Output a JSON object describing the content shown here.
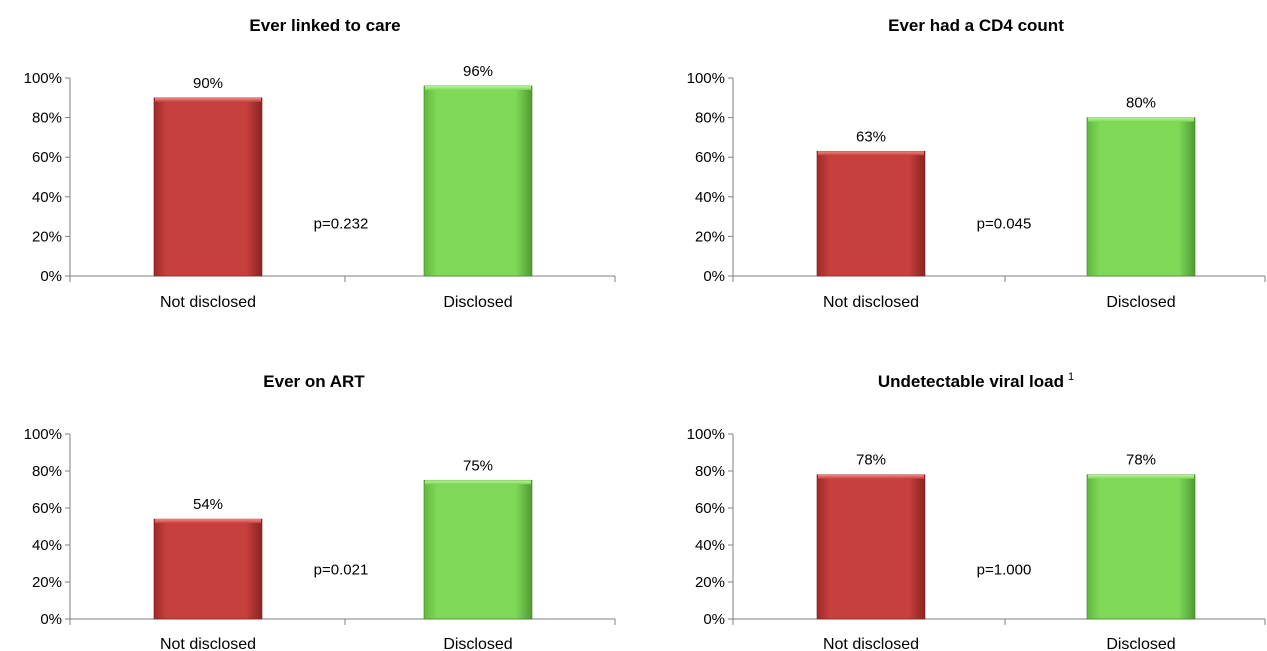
{
  "colors": {
    "not_disclosed": "#C8403E",
    "disclosed": "#7ED957",
    "axis": "#7f7f7f"
  },
  "chart_data": [
    {
      "type": "bar",
      "title": "Ever linked to care",
      "title_superscript": "",
      "categories": [
        "Not disclosed",
        "Disclosed"
      ],
      "values": [
        90,
        96
      ],
      "value_labels": [
        "90%",
        "96%"
      ],
      "annotation": "p=0.232",
      "ylim": [
        0,
        100
      ],
      "yticks": [
        "0%",
        "20%",
        "40%",
        "60%",
        "80%",
        "100%"
      ]
    },
    {
      "type": "bar",
      "title": "Ever had a CD4 count",
      "title_superscript": "",
      "categories": [
        "Not disclosed",
        "Disclosed"
      ],
      "values": [
        63,
        80
      ],
      "value_labels": [
        "63%",
        "80%"
      ],
      "annotation": "p=0.045",
      "ylim": [
        0,
        100
      ],
      "yticks": [
        "0%",
        "20%",
        "40%",
        "60%",
        "80%",
        "100%"
      ]
    },
    {
      "type": "bar",
      "title": "Ever on ART",
      "title_superscript": "",
      "categories": [
        "Not disclosed",
        "Disclosed"
      ],
      "values": [
        54,
        75
      ],
      "value_labels": [
        "54%",
        "75%"
      ],
      "annotation": "p=0.021",
      "ylim": [
        0,
        100
      ],
      "yticks": [
        "0%",
        "20%",
        "40%",
        "60%",
        "80%",
        "100%"
      ]
    },
    {
      "type": "bar",
      "title": "Undetectable viral load",
      "title_superscript": "1",
      "categories": [
        "Not disclosed",
        "Disclosed"
      ],
      "values": [
        78,
        78
      ],
      "value_labels": [
        "78%",
        "78%"
      ],
      "annotation": "p=1.000",
      "ylim": [
        0,
        100
      ],
      "yticks": [
        "0%",
        "20%",
        "40%",
        "60%",
        "80%",
        "100%"
      ]
    }
  ]
}
